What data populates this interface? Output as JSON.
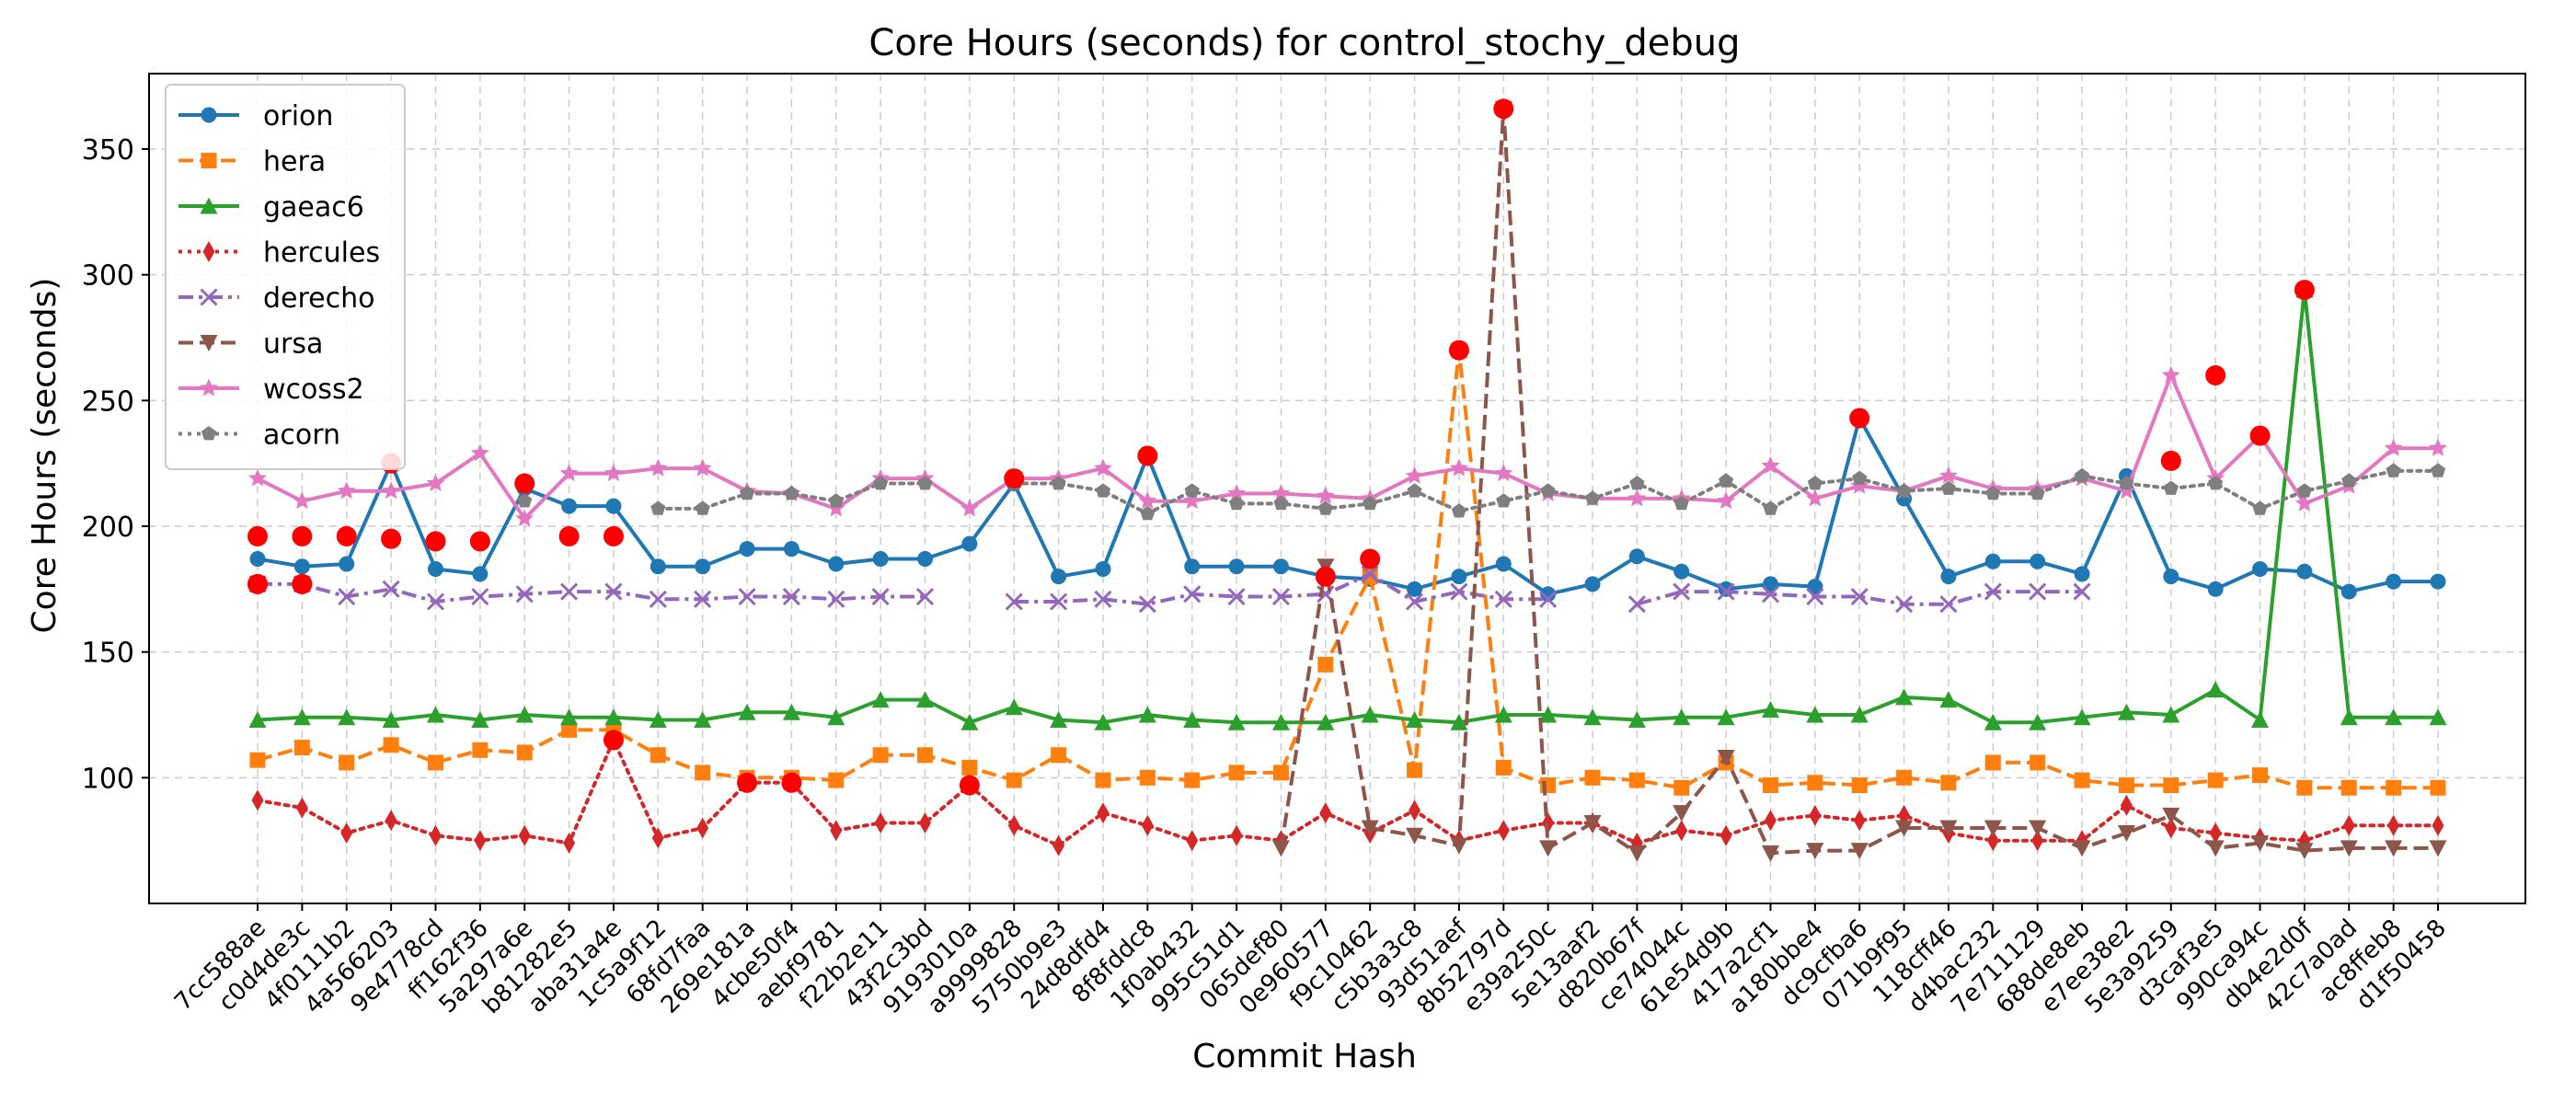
{
  "chart_data": {
    "type": "line",
    "title": "Core Hours (seconds) for control_stochy_debug",
    "xlabel": "Commit Hash",
    "ylabel": "Core Hours (seconds)",
    "ylim": [
      50,
      380
    ],
    "yticks": [
      100,
      150,
      200,
      250,
      300,
      350
    ],
    "grid": true,
    "legend_position": "top-left",
    "highlight_color": "#ff0000",
    "categories": [
      "7cc588ae",
      "c0d4de3c",
      "4f0111b2",
      "4a566203",
      "9e4778cd",
      "ff162f36",
      "5a297a6e",
      "b81282e5",
      "aba31a4e",
      "1c5a9f12",
      "68fd7faa",
      "269e181a",
      "4cbe50f4",
      "aebf9781",
      "f22b2e11",
      "43f2c3bd",
      "9193010a",
      "a9999828",
      "5750b9e3",
      "24d8dfd4",
      "8f8fddc8",
      "1f0ab432",
      "995c51d1",
      "065def80",
      "0e960577",
      "f9c10462",
      "c5b3a3c8",
      "93d51aef",
      "8b52797d",
      "e39a250c",
      "5e13aaf2",
      "d820b67f",
      "ce74044c",
      "61e54d9b",
      "417a2cf1",
      "a180bbe4",
      "dc9cfba6",
      "071b9f95",
      "118cff46",
      "d4bac232",
      "7e711129",
      "688de8eb",
      "e7ee38e2",
      "5e3a9259",
      "d3caf3e5",
      "990ca94c",
      "db4e2d0f",
      "42c7a0ad",
      "ac8ffeb8",
      "d1f50458"
    ],
    "series": [
      {
        "name": "orion",
        "color": "#1f77b4",
        "dash": "solid",
        "marker": "circle",
        "values": [
          187,
          184,
          185,
          225,
          183,
          181,
          215,
          208,
          208,
          184,
          184,
          191,
          191,
          185,
          187,
          187,
          193,
          217,
          180,
          183,
          228,
          184,
          184,
          184,
          180,
          179,
          175,
          180,
          185,
          173,
          177,
          188,
          182,
          175,
          177,
          176,
          243,
          211,
          180,
          186,
          186,
          181,
          220,
          180,
          175,
          183,
          182,
          174,
          178,
          178
        ],
        "highlights": [
          3,
          20,
          36
        ]
      },
      {
        "name": "hera",
        "color": "#ff7f0e",
        "dash": "dashed",
        "marker": "square",
        "values": [
          107,
          112,
          106,
          113,
          106,
          111,
          110,
          119,
          119,
          109,
          102,
          100,
          100,
          99,
          109,
          109,
          104,
          99,
          109,
          99,
          100,
          99,
          102,
          102,
          145,
          180,
          103,
          270,
          104,
          97,
          100,
          99,
          96,
          106,
          97,
          98,
          97,
          100,
          98,
          106,
          106,
          99,
          97,
          97,
          99,
          101,
          96,
          96,
          96,
          96
        ],
        "highlights": [
          27
        ]
      },
      {
        "name": "gaeac6",
        "color": "#2ca02c",
        "dash": "solid",
        "marker": "triangle-up",
        "values": [
          123,
          124,
          124,
          123,
          125,
          123,
          125,
          124,
          124,
          123,
          123,
          126,
          126,
          124,
          131,
          131,
          122,
          128,
          123,
          122,
          125,
          123,
          122,
          122,
          122,
          125,
          123,
          122,
          125,
          125,
          124,
          123,
          124,
          124,
          127,
          125,
          125,
          132,
          131,
          122,
          122,
          124,
          126,
          125,
          135,
          123,
          294,
          124,
          124,
          124
        ],
        "highlights": [
          46
        ]
      },
      {
        "name": "hercules",
        "color": "#d62728",
        "dash": "dotted",
        "marker": "diamond",
        "values": [
          91,
          88,
          78,
          83,
          77,
          75,
          77,
          74,
          115,
          76,
          80,
          98,
          98,
          79,
          82,
          82,
          97,
          81,
          73,
          86,
          81,
          75,
          77,
          75,
          86,
          78,
          87,
          75,
          79,
          82,
          82,
          74,
          79,
          77,
          83,
          85,
          83,
          85,
          78,
          75,
          75,
          75,
          89,
          80,
          78,
          76,
          75,
          81,
          81,
          81
        ],
        "highlights": [
          8,
          11,
          12,
          16
        ]
      },
      {
        "name": "derecho",
        "color": "#9467bd",
        "dash": "dashdot",
        "marker": "x",
        "values": [
          177,
          177,
          172,
          175,
          170,
          172,
          173,
          174,
          174,
          171,
          171,
          172,
          172,
          171,
          172,
          172,
          null,
          170,
          170,
          171,
          169,
          173,
          172,
          172,
          173,
          181,
          170,
          174,
          171,
          171,
          null,
          169,
          174,
          174,
          173,
          172,
          172,
          169,
          169,
          174,
          174,
          174,
          null,
          null,
          null,
          null,
          null,
          null,
          null,
          null
        ],
        "highlights": [
          0,
          1
        ]
      },
      {
        "name": "ursa",
        "color": "#8c564b",
        "dash": "dashed",
        "marker": "triangle-down",
        "values": [
          null,
          null,
          null,
          null,
          null,
          null,
          null,
          null,
          null,
          null,
          null,
          null,
          null,
          null,
          null,
          null,
          null,
          null,
          null,
          null,
          null,
          null,
          null,
          72,
          184,
          80,
          77,
          73,
          366,
          72,
          82,
          70,
          86,
          108,
          70,
          71,
          71,
          80,
          80,
          80,
          80,
          72,
          78,
          85,
          72,
          74,
          71,
          72,
          72,
          72
        ],
        "highlights": [
          28
        ]
      },
      {
        "name": "wcoss2",
        "color": "#e377c2",
        "dash": "solid",
        "marker": "star",
        "values": [
          219,
          210,
          214,
          214,
          217,
          229,
          203,
          221,
          221,
          223,
          223,
          214,
          213,
          207,
          219,
          219,
          207,
          219,
          219,
          223,
          210,
          210,
          213,
          213,
          212,
          211,
          220,
          223,
          221,
          213,
          211,
          211,
          211,
          210,
          224,
          211,
          216,
          214,
          220,
          215,
          215,
          219,
          214,
          260,
          219,
          236,
          209,
          216,
          231,
          231
        ],
        "highlights": []
      },
      {
        "name": "acorn",
        "color": "#7f7f7f",
        "dash": "dotted",
        "marker": "pentagon",
        "values": [
          null,
          null,
          null,
          null,
          null,
          null,
          210,
          null,
          null,
          207,
          207,
          213,
          213,
          210,
          217,
          217,
          null,
          217,
          217,
          214,
          205,
          214,
          209,
          209,
          207,
          209,
          214,
          206,
          210,
          214,
          211,
          217,
          209,
          218,
          207,
          217,
          219,
          214,
          215,
          213,
          213,
          220,
          217,
          215,
          217,
          207,
          214,
          218,
          222,
          222
        ],
        "highlights": []
      }
    ],
    "extra_highlights": [
      {
        "x": 0,
        "y": 196
      },
      {
        "x": 1,
        "y": 196
      },
      {
        "x": 2,
        "y": 196
      },
      {
        "x": 3,
        "y": 195
      },
      {
        "x": 4,
        "y": 194
      },
      {
        "x": 5,
        "y": 194
      },
      {
        "x": 6,
        "y": 217
      },
      {
        "x": 7,
        "y": 196
      },
      {
        "x": 8,
        "y": 196
      },
      {
        "x": 17,
        "y": 219
      },
      {
        "x": 24,
        "y": 180
      },
      {
        "x": 25,
        "y": 187
      },
      {
        "x": 43,
        "y": 226
      },
      {
        "x": 44,
        "y": 260
      },
      {
        "x": 45,
        "y": 236
      },
      {
        "x": 0,
        "y": 177
      },
      {
        "x": 1,
        "y": 177
      }
    ]
  }
}
